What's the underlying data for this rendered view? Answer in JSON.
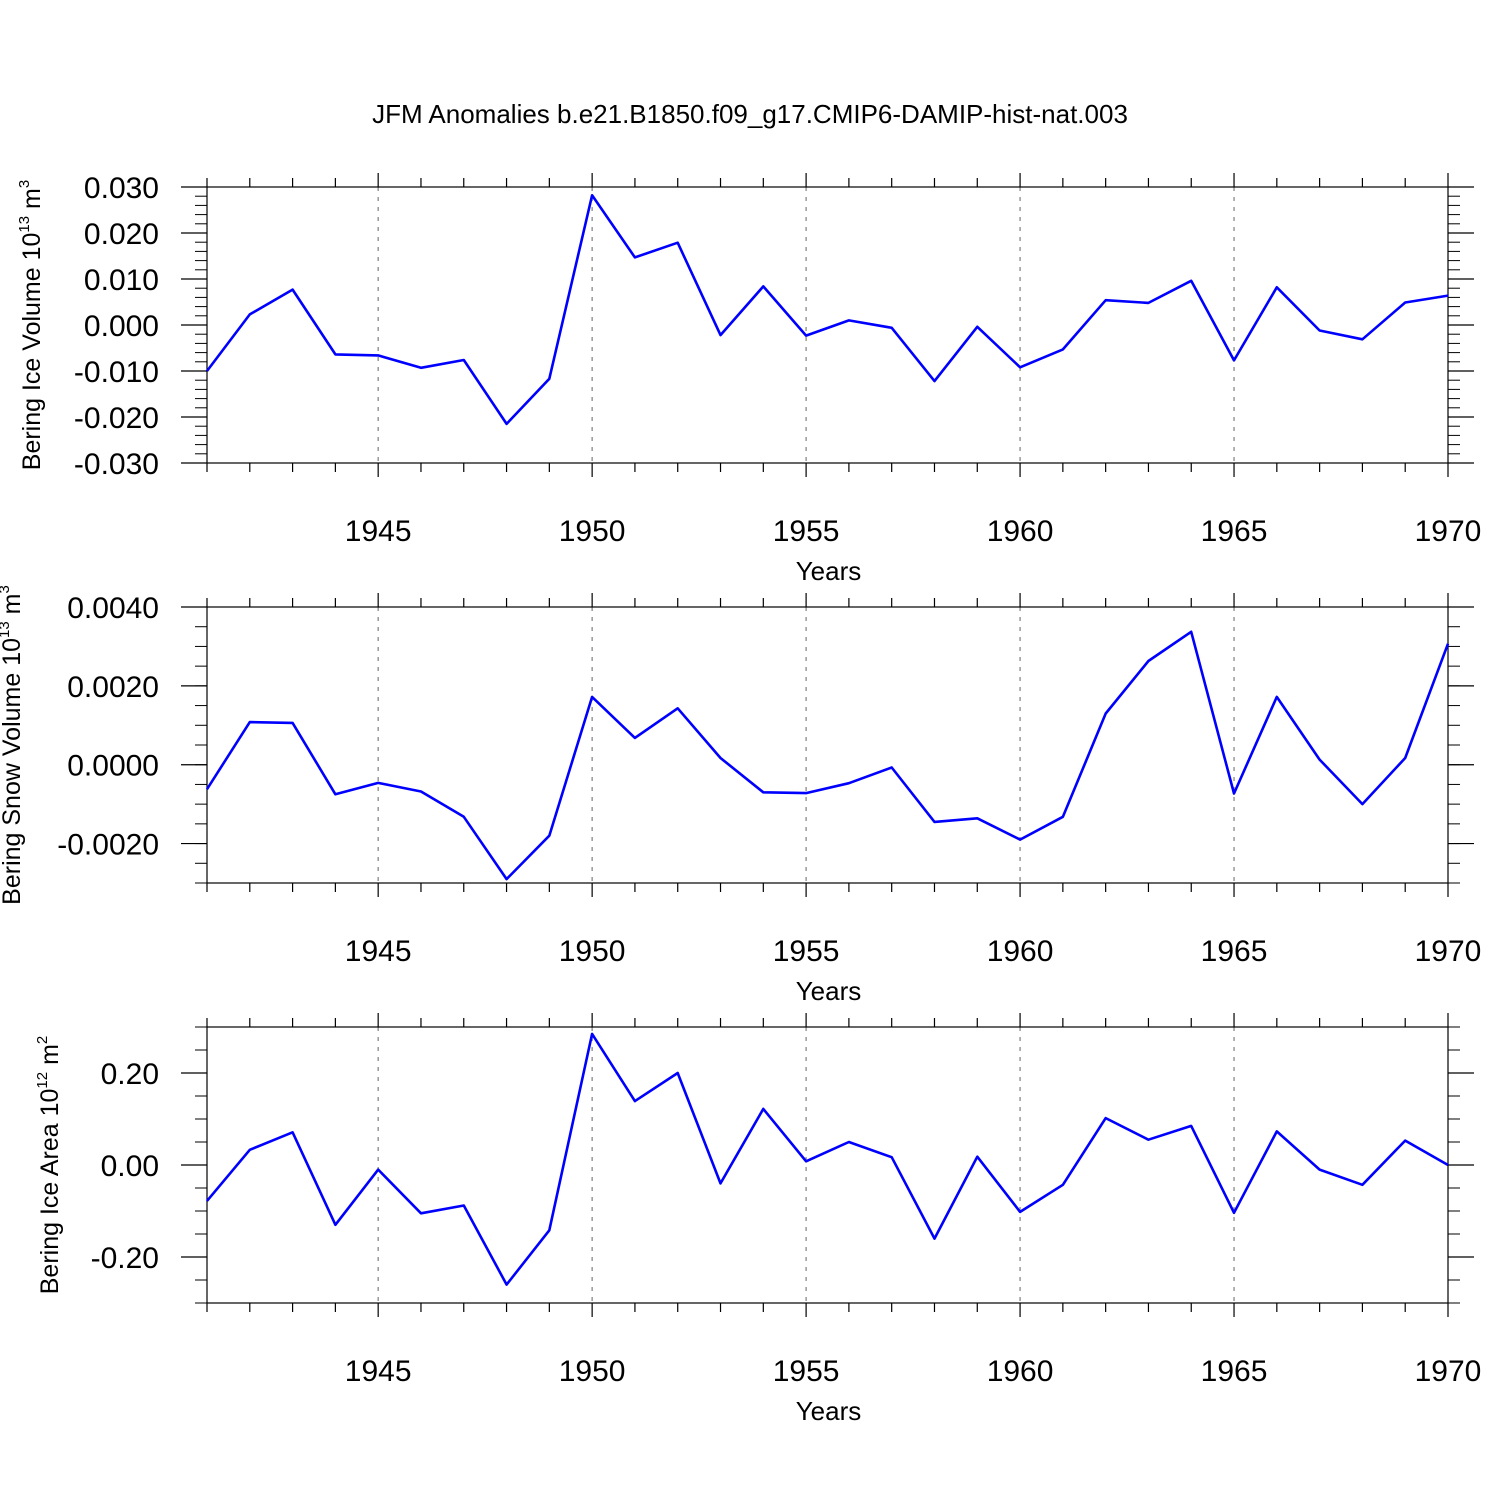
{
  "chart_data": {
    "type": "line",
    "title": "JFM Anomalies b.e21.B1850.f09_g17.CMIP6-DAMIP-hist-nat.003",
    "x": [
      1941,
      1942,
      1943,
      1944,
      1945,
      1946,
      1947,
      1948,
      1949,
      1950,
      1951,
      1952,
      1953,
      1954,
      1955,
      1956,
      1957,
      1958,
      1959,
      1960,
      1961,
      1962,
      1963,
      1964,
      1965,
      1966,
      1967,
      1968,
      1969,
      1970
    ],
    "xlim": [
      1941,
      1970
    ],
    "x_ticks": [
      1945,
      1950,
      1955,
      1960,
      1965,
      1970
    ],
    "grid": "vertical dashed at labeled years",
    "panels": [
      {
        "name": "ice-volume",
        "ylabel": "Bering Ice Volume 10",
        "ylabel_exp": "13",
        "ylabel_unit": " m",
        "ylabel_unit_exp": "3",
        "xlabel": "Years",
        "ylim": [
          -0.03,
          0.03
        ],
        "y_ticks": [
          -0.03,
          -0.02,
          -0.01,
          0.0,
          0.01,
          0.02,
          0.03
        ],
        "y_tick_labels": [
          "-0.030",
          "-0.020",
          "-0.010",
          "0.000",
          "0.010",
          "0.020",
          "0.030"
        ],
        "minor_step": 0.002,
        "color": "#0000ff",
        "values": [
          -0.01,
          0.0023,
          0.0077,
          -0.0064,
          -0.0066,
          -0.0093,
          -0.0076,
          -0.0215,
          -0.0117,
          0.0282,
          0.0147,
          0.0179,
          -0.0022,
          0.0084,
          -0.0023,
          0.001,
          -0.0006,
          -0.0122,
          -0.0004,
          -0.0092,
          -0.0053,
          0.0054,
          0.0048,
          0.0096,
          -0.0077,
          0.0082,
          -0.0012,
          -0.0031,
          0.0049,
          0.0064
        ]
      },
      {
        "name": "snow-volume",
        "ylabel": "Bering Snow Volume 10",
        "ylabel_exp": "13",
        "ylabel_unit": " m",
        "ylabel_unit_exp": "3",
        "xlabel": "Years",
        "ylim": [
          -0.003,
          0.004
        ],
        "y_ticks": [
          -0.002,
          0.0,
          0.002,
          0.004
        ],
        "y_tick_labels": [
          "-0.0020",
          "0.0000",
          "0.0020",
          "0.0040"
        ],
        "minor_step": 0.0005,
        "color": "#0000ff",
        "values": [
          -0.00062,
          0.00108,
          0.00106,
          -0.00075,
          -0.00046,
          -0.00068,
          -0.00132,
          -0.0029,
          -0.0018,
          0.00172,
          0.00068,
          0.00143,
          0.00017,
          -0.0007,
          -0.00072,
          -0.00047,
          -7e-05,
          -0.00145,
          -0.00136,
          -0.0019,
          -0.00132,
          0.0013,
          0.00263,
          0.00337,
          -0.00073,
          0.00172,
          0.00013,
          -0.001,
          0.00017,
          0.00307
        ]
      },
      {
        "name": "ice-area",
        "ylabel": "Bering Ice Area 10",
        "ylabel_exp": "12",
        "ylabel_unit": " m",
        "ylabel_unit_exp": "2",
        "xlabel": "Years",
        "ylim": [
          -0.3,
          0.3
        ],
        "y_ticks": [
          -0.2,
          0.0,
          0.2
        ],
        "y_tick_labels": [
          "-0.20",
          "0.00",
          "0.20"
        ],
        "minor_step": 0.05,
        "color": "#0000ff",
        "values": [
          -0.078,
          0.033,
          0.071,
          -0.13,
          -0.01,
          -0.105,
          -0.088,
          -0.26,
          -0.142,
          0.285,
          0.139,
          0.2,
          -0.04,
          0.122,
          0.008,
          0.05,
          0.017,
          -0.16,
          0.018,
          -0.102,
          -0.043,
          0.102,
          0.055,
          0.085,
          -0.104,
          0.073,
          -0.01,
          -0.043,
          0.053,
          0.0
        ]
      }
    ]
  }
}
